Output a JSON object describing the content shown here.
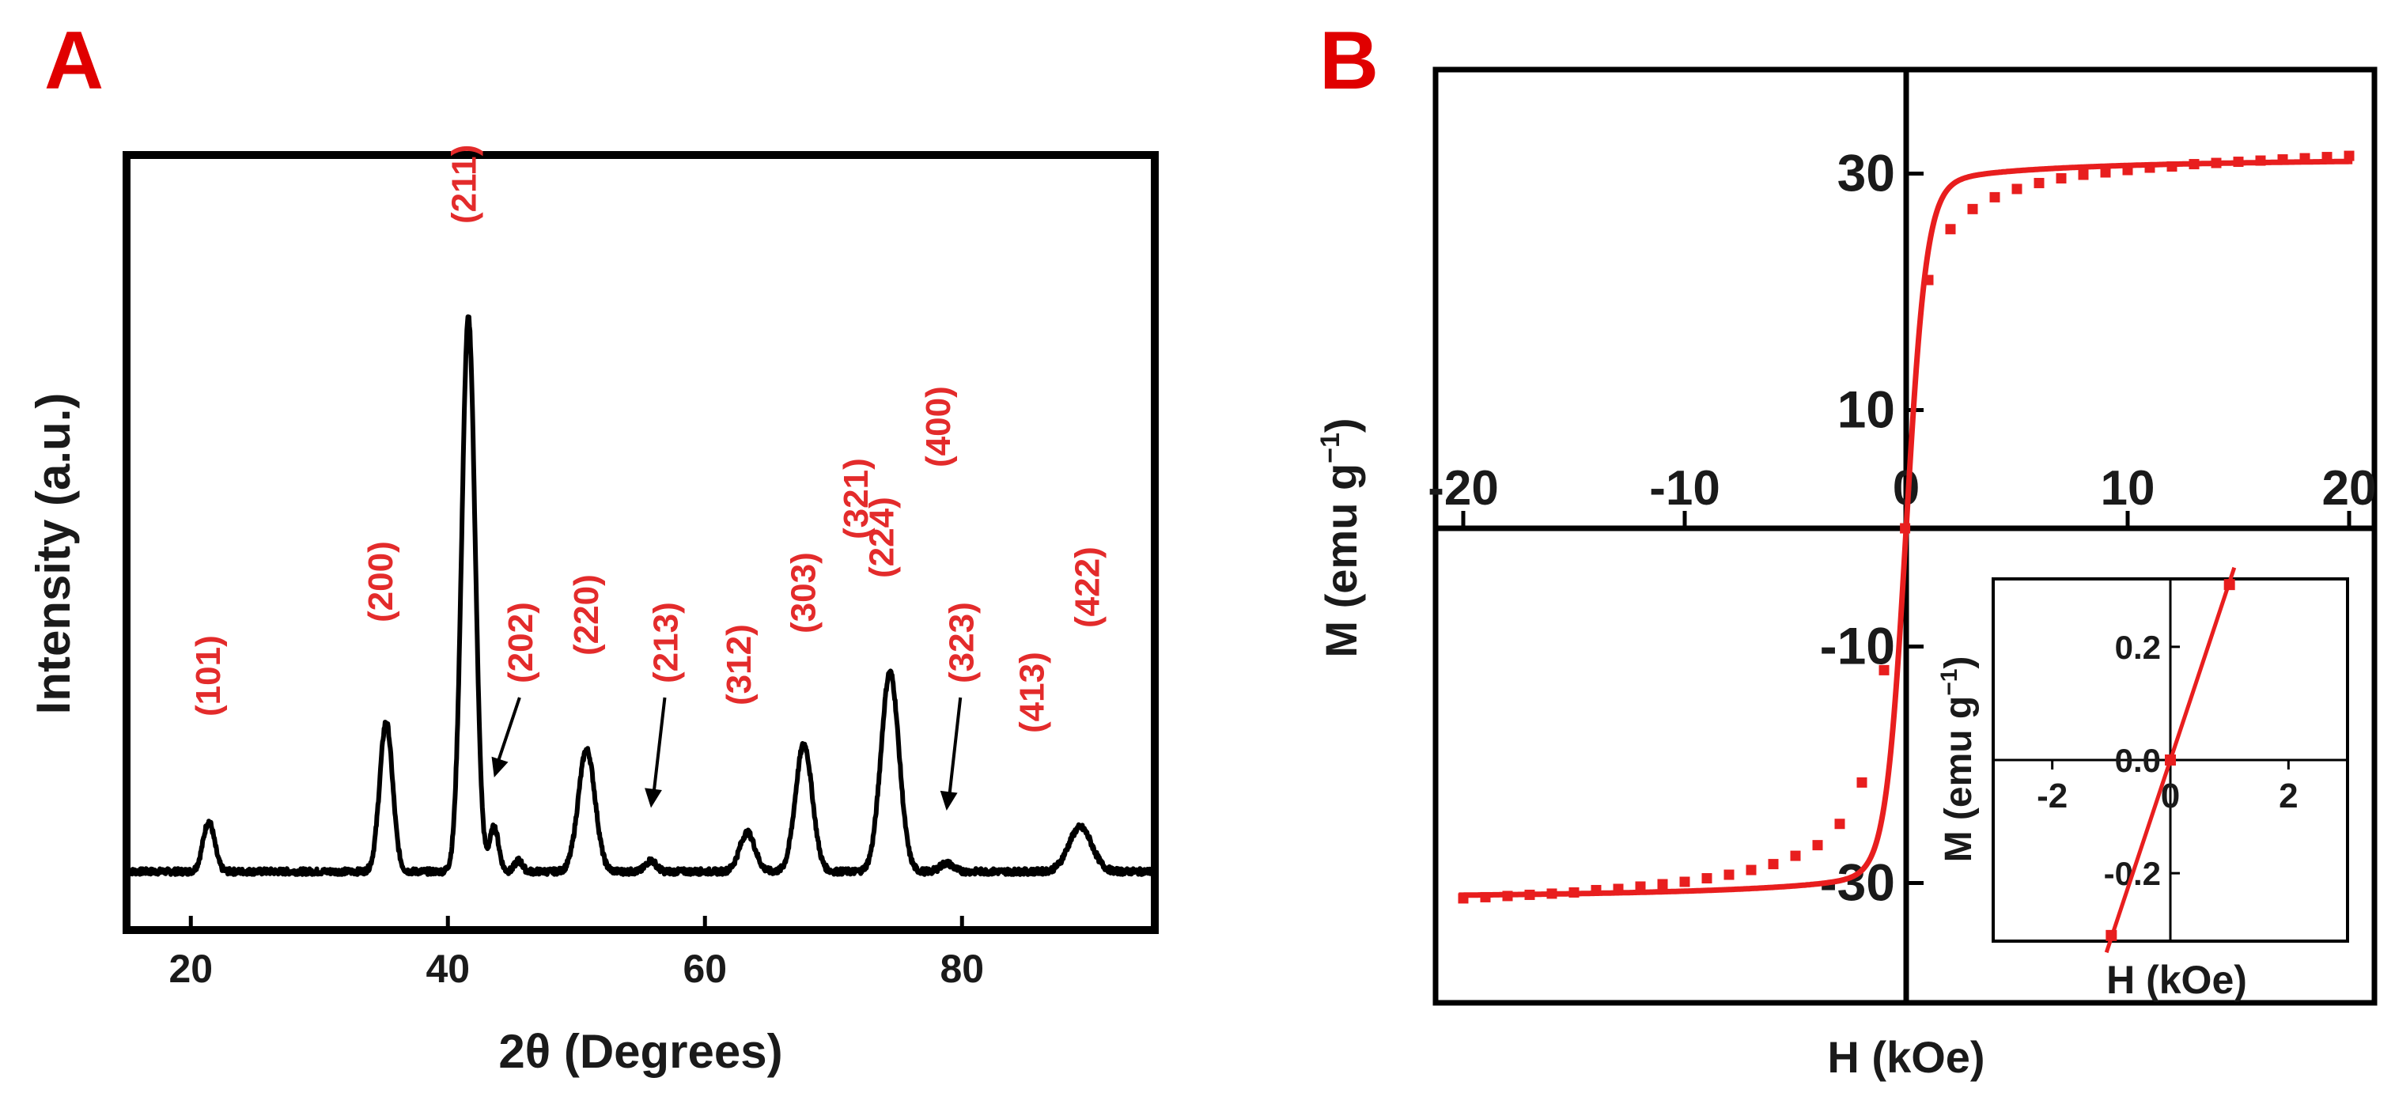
{
  "figure": {
    "panel_a_letter": "A",
    "panel_b_letter": "B"
  },
  "chart_data": [
    {
      "id": "A",
      "type": "line",
      "title": "",
      "xlabel": "2θ (Degrees)",
      "ylabel": "Intensity (a.u.)",
      "xlim": [
        15,
        95
      ],
      "ylim": [
        0,
        100
      ],
      "xticks": [
        "20",
        "40",
        "60",
        "80"
      ],
      "xtick_values": [
        20,
        40,
        60,
        80
      ],
      "baseline": 10,
      "series": [
        {
          "name": "XRD pattern",
          "color": "#000000",
          "peaks": [
            {
              "pos": 21.4,
              "height": 9,
              "width": 0.45
            },
            {
              "pos": 35.2,
              "height": 27,
              "width": 0.5
            },
            {
              "pos": 41.6,
              "height": 100,
              "width": 0.52
            },
            {
              "pos": 43.6,
              "height": 8,
              "width": 0.35
            },
            {
              "pos": 45.5,
              "height": 2,
              "width": 0.3
            },
            {
              "pos": 50.8,
              "height": 22,
              "width": 0.65
            },
            {
              "pos": 55.8,
              "height": 2,
              "width": 0.4
            },
            {
              "pos": 63.3,
              "height": 7,
              "width": 0.6
            },
            {
              "pos": 67.7,
              "height": 23,
              "width": 0.65
            },
            {
              "pos": 74.4,
              "height": 36,
              "width": 0.7
            },
            {
              "pos": 78.8,
              "height": 1.5,
              "width": 0.5
            },
            {
              "pos": 89.2,
              "height": 8,
              "width": 0.9
            }
          ]
        }
      ],
      "annotations": [
        {
          "label": "(101)",
          "pos": 21.4,
          "top": 28
        },
        {
          "label": "(200)",
          "pos": 34.8,
          "top": 45
        },
        {
          "label": "(211)",
          "pos": 41.3,
          "top": 117
        },
        {
          "label": "(202)",
          "pos": 45.7,
          "top": 34,
          "arrow_to": [
            43.6,
            17
          ]
        },
        {
          "label": "(220)",
          "pos": 50.8,
          "top": 39
        },
        {
          "label": "(213)",
          "pos": 57.0,
          "top": 34,
          "arrow_to": [
            55.8,
            11.5
          ]
        },
        {
          "label": "(312)",
          "pos": 62.7,
          "top": 30
        },
        {
          "label": "(303)",
          "pos": 67.7,
          "top": 43
        },
        {
          "label": "(321)",
          "pos": 71.8,
          "top": 60
        },
        {
          "label": "(224)",
          "pos": 73.8,
          "top": 53
        },
        {
          "label": "(400)",
          "pos": 78.2,
          "top": 73
        },
        {
          "label": "(323)",
          "pos": 80.0,
          "top": 34,
          "arrow_to": [
            78.8,
            11
          ]
        },
        {
          "label": "(413)",
          "pos": 85.5,
          "top": 25
        },
        {
          "label": "(422)",
          "pos": 89.8,
          "top": 44
        }
      ]
    },
    {
      "id": "B",
      "type": "line",
      "title": "",
      "xlabel": "H (kOe)",
      "ylabel": "M (emu g",
      "ylabel_sup": "−1",
      "ylabel_close": ")",
      "xlim": [
        -21,
        21
      ],
      "ylim": [
        -40,
        40
      ],
      "xticks": [
        "-20",
        "-10",
        "0",
        "10",
        "20"
      ],
      "xtick_values": [
        -20,
        -10,
        0,
        10,
        20
      ],
      "yticks": [
        "30",
        "10",
        "-10",
        "-30"
      ],
      "ytick_values": [
        30,
        10,
        -10,
        -30
      ],
      "series": [
        {
          "name": "M-H loop",
          "color": "#e81e1e",
          "marker": "square",
          "Ms": 31.5,
          "x": [
            -20,
            -19,
            -18,
            -17,
            -16,
            -15,
            -14,
            -13,
            -12,
            -11,
            -10,
            -9,
            -8,
            -7,
            -6,
            -5,
            -4,
            -3,
            -2,
            -1,
            -0.05,
            1,
            2,
            3,
            4,
            5,
            6,
            7,
            8,
            9,
            10,
            11,
            12,
            13,
            14,
            15,
            16,
            17,
            18,
            19,
            20
          ],
          "y": [
            -31.3,
            -31.2,
            -31.1,
            -31.0,
            -30.9,
            -30.8,
            -30.6,
            -30.5,
            -30.3,
            -30.1,
            -29.9,
            -29.6,
            -29.3,
            -28.9,
            -28.4,
            -27.7,
            -26.8,
            -25.0,
            -21.5,
            -12.0,
            0,
            21.0,
            25.3,
            27.0,
            28.0,
            28.7,
            29.2,
            29.6,
            29.9,
            30.1,
            30.3,
            30.5,
            30.6,
            30.8,
            30.9,
            31.0,
            31.1,
            31.2,
            31.3,
            31.4,
            31.5
          ]
        }
      ],
      "inset": {
        "xlabel": "H (kOe)",
        "ylabel": "M (emu g",
        "ylabel_sup": "−1",
        "ylabel_close": ")",
        "xlim": [
          -3,
          3
        ],
        "ylim": [
          -0.32,
          0.32
        ],
        "xticks": [
          "-2",
          "0",
          "2"
        ],
        "xtick_values": [
          -2,
          0,
          2
        ],
        "yticks": [
          "0.2",
          "0.0",
          "-0.2"
        ],
        "ytick_values": [
          0.2,
          0.0,
          -0.2
        ],
        "x": [
          -1,
          0,
          1
        ],
        "y": [
          -0.31,
          0,
          0.31
        ]
      }
    }
  ]
}
